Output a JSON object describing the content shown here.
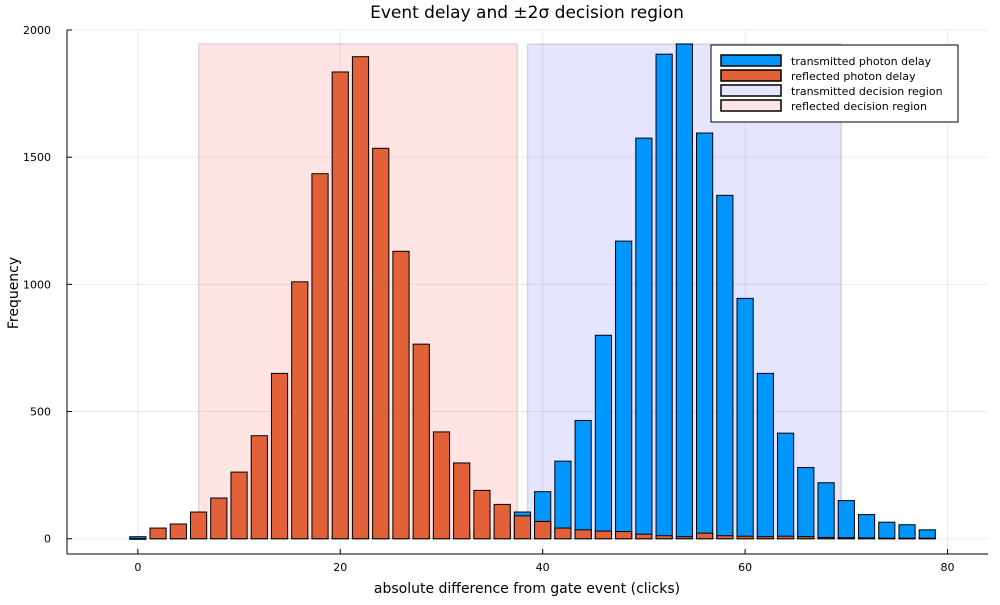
{
  "chart_data": {
    "type": "bar",
    "title": "Event delay and ±2σ decision region",
    "xlabel": "absolute difference from gate event (clicks)",
    "ylabel": "Frequency",
    "xlim": [
      -7,
      84
    ],
    "ylim": [
      -60,
      2000
    ],
    "xticks": [
      0,
      20,
      40,
      60,
      80
    ],
    "yticks": [
      0,
      500,
      1000,
      1500,
      2000
    ],
    "grid": true,
    "legend_position": "top-right",
    "bar_width": 1.6,
    "series": [
      {
        "name": "transmitted photon delay",
        "color": "#0096ff",
        "x": [
          0,
          2,
          4,
          6,
          8,
          10,
          12,
          14,
          16,
          18,
          20,
          22,
          24,
          26,
          28,
          30,
          32,
          34,
          36,
          38,
          40,
          42,
          44,
          46,
          48,
          50,
          52,
          54,
          56,
          58,
          60,
          62,
          64,
          66,
          68,
          70,
          72,
          74,
          76,
          78
        ],
        "values": [
          8,
          2,
          2,
          3,
          4,
          4,
          5,
          6,
          6,
          7,
          8,
          9,
          10,
          12,
          14,
          18,
          24,
          32,
          50,
          105,
          185,
          305,
          465,
          800,
          1170,
          1575,
          1905,
          1945,
          1595,
          1350,
          945,
          650,
          415,
          280,
          220,
          150,
          95,
          65,
          55,
          35
        ]
      },
      {
        "name": "reflected photon delay",
        "color": "#e26138",
        "x": [
          0,
          2,
          4,
          6,
          8,
          10,
          12,
          14,
          16,
          18,
          20,
          22,
          24,
          26,
          28,
          30,
          32,
          34,
          36,
          38,
          40,
          42,
          44,
          46,
          48,
          50,
          52,
          54,
          56,
          58,
          60,
          62,
          64,
          66,
          68,
          70,
          72,
          74,
          76,
          78
        ],
        "values": [
          0,
          42,
          58,
          105,
          160,
          262,
          405,
          650,
          1010,
          1435,
          1835,
          1895,
          1535,
          1130,
          765,
          420,
          298,
          190,
          135,
          90,
          68,
          42,
          35,
          30,
          28,
          18,
          12,
          8,
          22,
          12,
          10,
          8,
          10,
          8,
          5,
          4,
          3,
          2,
          2,
          2
        ]
      }
    ],
    "regions": [
      {
        "name": "transmitted decision region",
        "x": [
          38.5,
          69.5
        ],
        "fill": "#0000ff",
        "opacity": 0.1
      },
      {
        "name": "reflected decision region",
        "x": [
          6,
          37.5
        ],
        "fill": "#ff4d4d",
        "opacity": 0.15
      }
    ],
    "region_top": 1945
  }
}
